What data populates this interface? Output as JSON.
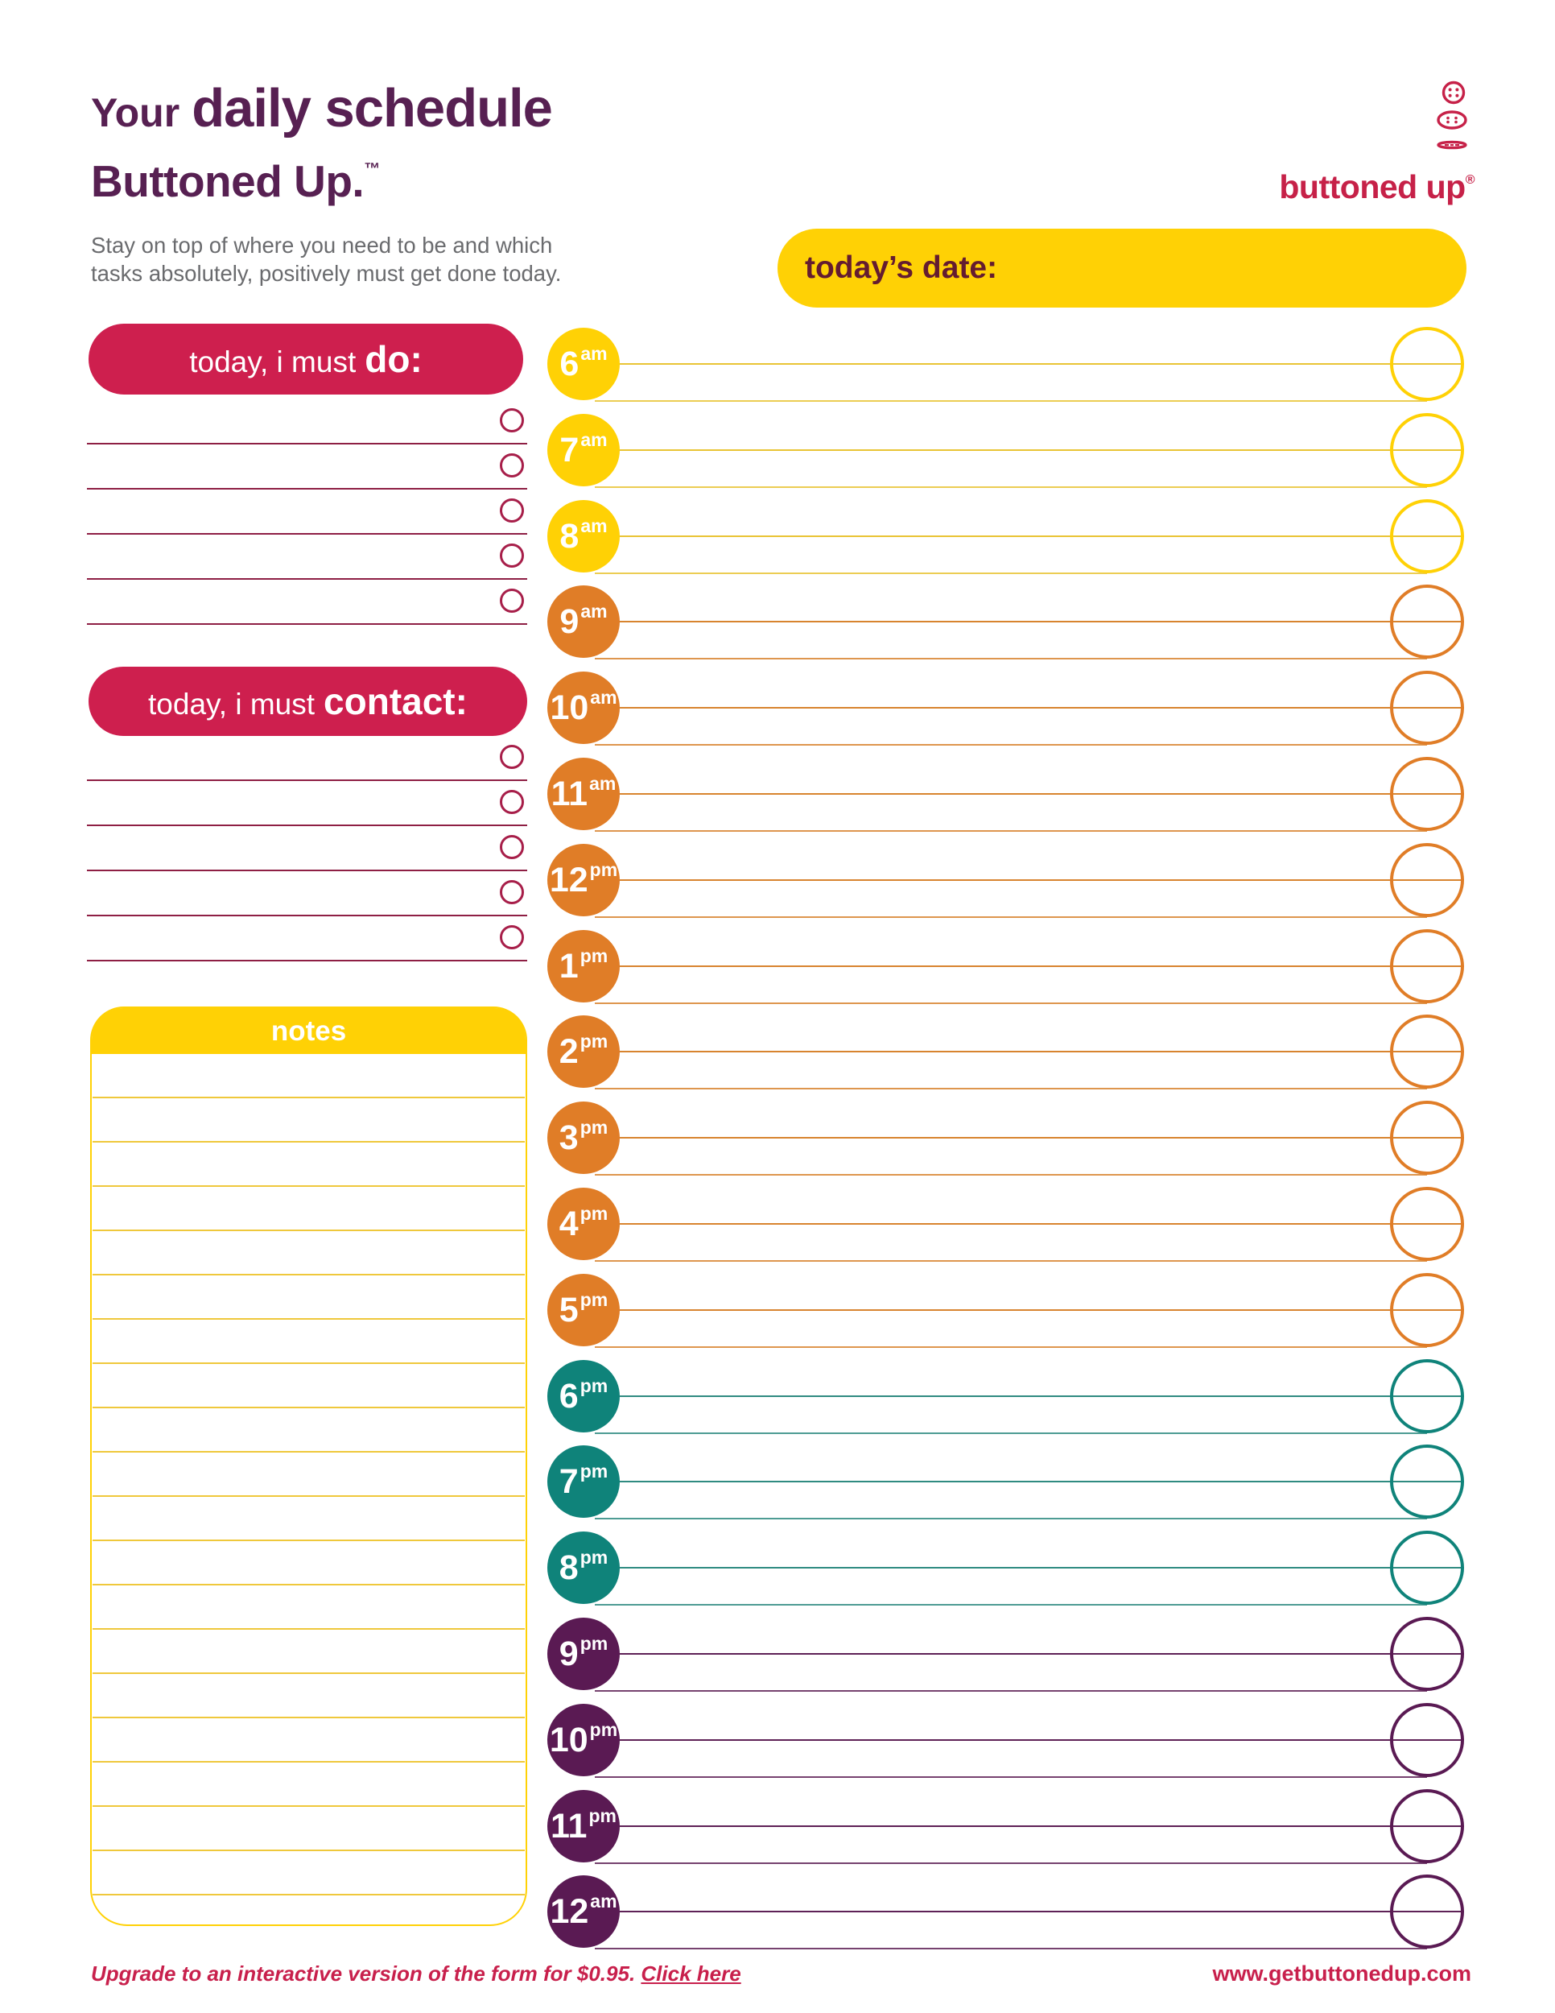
{
  "header": {
    "title_light": "Your",
    "title_bold": "daily schedule",
    "brand": "Buttoned Up.",
    "trademark": "™",
    "description_line1": "Stay on top of where you need to be and which",
    "description_line2": "tasks absolutely, positively must get done today.",
    "logo_text": "buttoned up",
    "logo_reg": "®"
  },
  "date_bar": {
    "label": "today’s date:"
  },
  "sections": {
    "do": {
      "title_prefix": "today, i must",
      "title_bold": "do:",
      "rows": 5
    },
    "contact": {
      "title_prefix": "today, i must",
      "title_bold": "contact:",
      "rows": 5
    },
    "notes": {
      "title": "notes",
      "line_count": 19
    }
  },
  "schedule": {
    "hours": [
      {
        "label": "6",
        "meridiem": "am",
        "color": "yellow"
      },
      {
        "label": "7",
        "meridiem": "am",
        "color": "yellow"
      },
      {
        "label": "8",
        "meridiem": "am",
        "color": "yellow"
      },
      {
        "label": "9",
        "meridiem": "am",
        "color": "orange"
      },
      {
        "label": "10",
        "meridiem": "am",
        "color": "orange"
      },
      {
        "label": "11",
        "meridiem": "am",
        "color": "orange"
      },
      {
        "label": "12",
        "meridiem": "pm",
        "color": "orange"
      },
      {
        "label": "1",
        "meridiem": "pm",
        "color": "orange"
      },
      {
        "label": "2",
        "meridiem": "pm",
        "color": "orange"
      },
      {
        "label": "3",
        "meridiem": "pm",
        "color": "orange"
      },
      {
        "label": "4",
        "meridiem": "pm",
        "color": "orange"
      },
      {
        "label": "5",
        "meridiem": "pm",
        "color": "orange"
      },
      {
        "label": "6",
        "meridiem": "pm",
        "color": "teal"
      },
      {
        "label": "7",
        "meridiem": "pm",
        "color": "teal"
      },
      {
        "label": "8",
        "meridiem": "pm",
        "color": "teal"
      },
      {
        "label": "9",
        "meridiem": "pm",
        "color": "purple"
      },
      {
        "label": "10",
        "meridiem": "pm",
        "color": "purple"
      },
      {
        "label": "11",
        "meridiem": "pm",
        "color": "purple"
      },
      {
        "label": "12",
        "meridiem": "am",
        "color": "purple"
      }
    ]
  },
  "footer": {
    "upgrade_text": "Upgrade to an interactive version of the form for $0.95. ",
    "upgrade_link": "Click here",
    "website": "www.getbuttonedup.com"
  },
  "colors": {
    "yellow": "#FFD105",
    "yellow_line": "#E9C435",
    "orange": "#E07D27",
    "orange_line": "#D8842F",
    "teal": "#0F837A",
    "teal_line": "#2F8B81",
    "purple": "#5A1A53",
    "purple_line": "#5E2156",
    "crimson": "#CE1F4E",
    "task_line": "#8E1F44",
    "task_circle": "#A71E49",
    "note_line": "#EFC83C",
    "title_purple": "#572052",
    "date_text": "#641C30",
    "gray_text": "#6A6B6E",
    "logo_crimson": "#C62148",
    "footer_crimson": "#C8204C"
  }
}
